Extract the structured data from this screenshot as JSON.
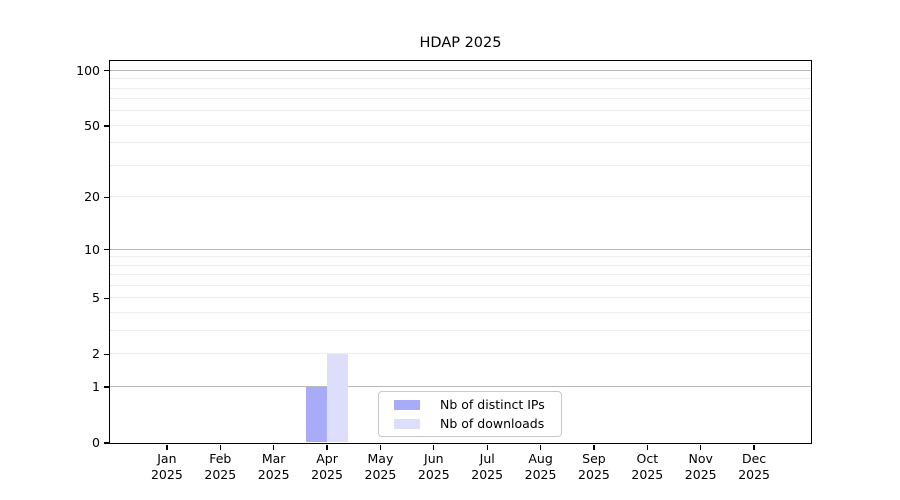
{
  "chart_data": {
    "type": "bar",
    "title": "HDAP 2025",
    "categories": [
      "Jan",
      "Feb",
      "Mar",
      "Apr",
      "May",
      "Jun",
      "Jul",
      "Aug",
      "Sep",
      "Oct",
      "Nov",
      "Dec"
    ],
    "x_year_label": "2025",
    "series": [
      {
        "name": "Nb of distinct IPs",
        "color": "#a8abf8",
        "values": [
          0,
          0,
          0,
          1,
          0,
          0,
          0,
          0,
          0,
          0,
          0,
          0
        ]
      },
      {
        "name": "Nb of downloads",
        "color": "#dcdefa",
        "values": [
          0,
          0,
          0,
          2,
          0,
          0,
          0,
          0,
          0,
          0,
          0,
          0
        ]
      }
    ],
    "yscale": "log10(1+y)",
    "yticks": [
      0,
      1,
      2,
      5,
      10,
      20,
      50,
      100
    ],
    "ylim": [
      0,
      113
    ],
    "major_grid_values": [
      1,
      10,
      100
    ],
    "minor_grid_values": [
      2,
      3,
      4,
      5,
      6,
      7,
      8,
      9,
      20,
      30,
      40,
      50,
      60,
      70,
      80,
      90
    ],
    "grid": "horizontal",
    "legend_position": "lower-center",
    "colors": {
      "axis": "#000000",
      "text": "#000000",
      "major_grid": "#b8b8b8",
      "minor_grid": "#ececec",
      "legend_border": "#c8c8c8",
      "background": "#ffffff"
    }
  }
}
